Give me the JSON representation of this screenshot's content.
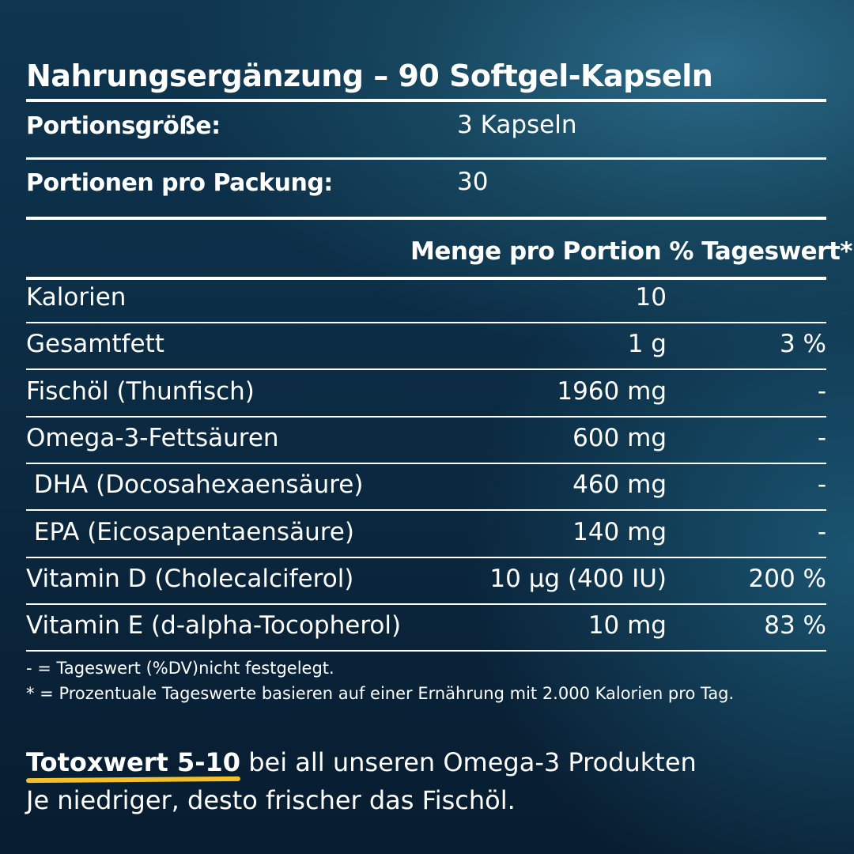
{
  "title": "Nahrungsergänzung – 90 Softgel-Kapseln",
  "serving": {
    "label": "Portionsgröße:",
    "value": "3 Kapseln"
  },
  "servings_per_pack": {
    "label": "Portionen pro Packung:",
    "value": "30"
  },
  "table_header": "Menge pro Portion % Tageswert*",
  "rows": [
    {
      "name": "Kalorien",
      "amount": "10",
      "dv": ""
    },
    {
      "name": "Gesamtfett",
      "amount": "1 g",
      "dv": "3 %"
    },
    {
      "name": "Fischöl (Thunfisch)",
      "amount": "1960 mg",
      "dv": "-"
    },
    {
      "name": "Omega-3-Fettsäuren",
      "amount": "600 mg",
      "dv": "-"
    },
    {
      "name": " DHA (Docosahexaensäure)",
      "amount": "460 mg",
      "dv": "-"
    },
    {
      "name": " EPA (Eicosapentaensäure)",
      "amount": "140 mg",
      "dv": "-"
    },
    {
      "name": "Vitamin D (Cholecalciferol)",
      "amount": "10 µg (400 IU)",
      "dv": "200 %"
    },
    {
      "name": "Vitamin E (d-alpha-Tocopherol)",
      "amount": "10 mg",
      "dv": "83 %"
    }
  ],
  "notes": [
    "- = Tageswert (%DV)nicht festgelegt.",
    "* = Prozentuale Tageswerte basieren auf einer Ernährung mit 2.000 Kalorien pro Tag."
  ],
  "totox": {
    "highlight": "Totoxwert 5-10",
    "rest": " bei all unseren Omega-3 Produkten",
    "line2": "Je niedriger, desto frischer das Fischöl.",
    "highlight_color": "#f4c02a"
  }
}
